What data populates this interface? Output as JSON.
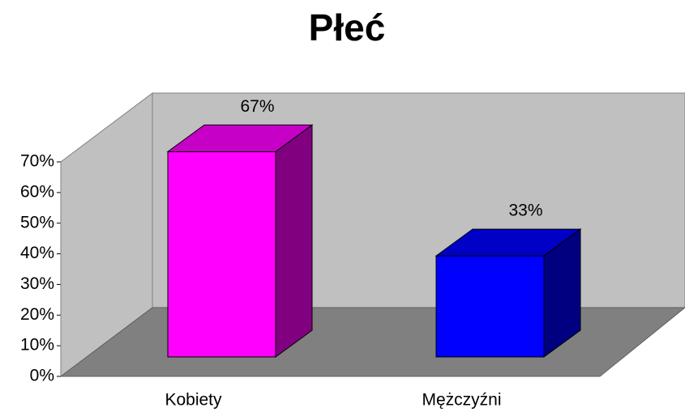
{
  "chart_data": {
    "type": "bar3d",
    "title": "Płeć",
    "categories": [
      "Kobiety",
      "Mężczyźni"
    ],
    "values": [
      67,
      33
    ],
    "value_labels": [
      "67%",
      "33%"
    ],
    "colors": [
      "#ff00ff",
      "#0000ff"
    ],
    "ylim": [
      0,
      70
    ],
    "yticks": [
      {
        "value": 0,
        "label": "0%"
      },
      {
        "value": 10,
        "label": "10%"
      },
      {
        "value": 20,
        "label": "20%"
      },
      {
        "value": 30,
        "label": "30%"
      },
      {
        "value": 40,
        "label": "40%"
      },
      {
        "value": 50,
        "label": "50%"
      },
      {
        "value": 60,
        "label": "60%"
      },
      {
        "value": 70,
        "label": "70%"
      }
    ]
  }
}
